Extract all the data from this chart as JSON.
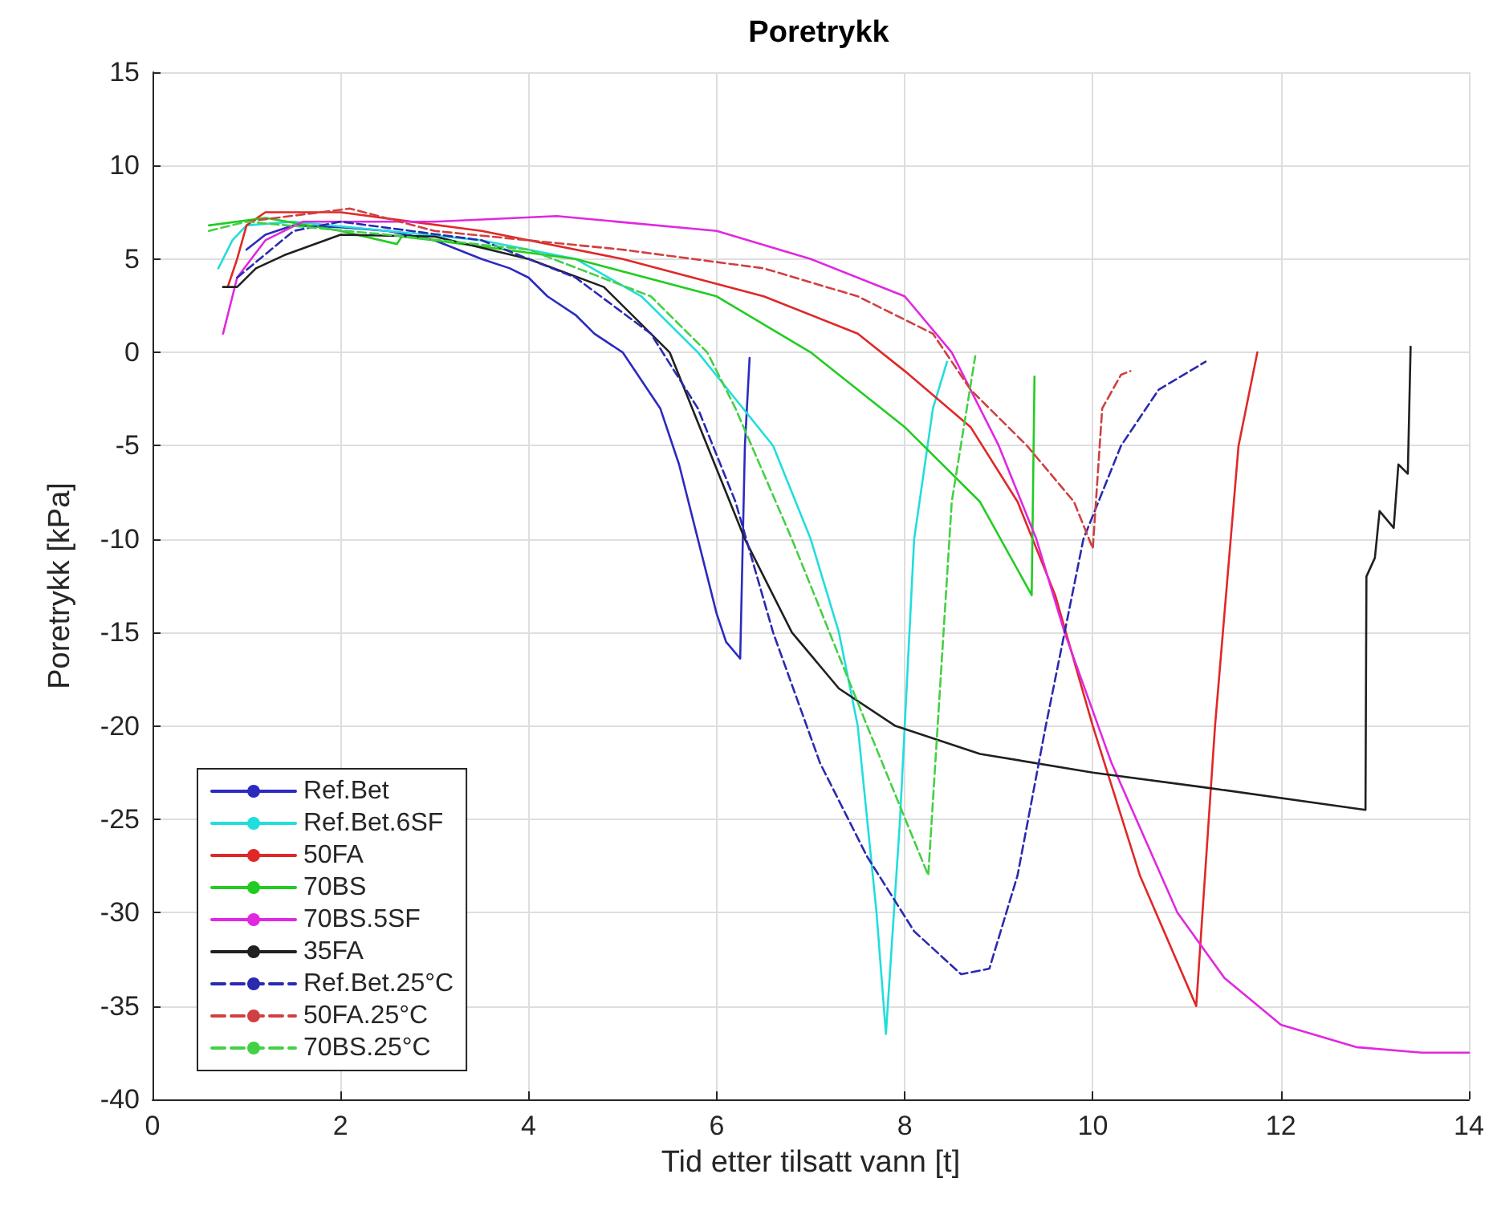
{
  "chart_data": {
    "type": "line",
    "title": "Poretrykk",
    "xlabel": "Tid etter tilsatt vann [t]",
    "ylabel": "Poretrykk [kPa]",
    "xlim": [
      0,
      14
    ],
    "xticks": [
      0,
      2,
      4,
      6,
      8,
      10,
      12,
      14
    ],
    "ylim": [
      -40,
      15
    ],
    "yticks": [
      -40,
      -35,
      -30,
      -25,
      -20,
      -15,
      -10,
      -5,
      0,
      5,
      10,
      15
    ],
    "grid": true,
    "legend": "bottom left",
    "marker": "none",
    "series": [
      {
        "name": "Ref.Bet",
        "color": "#2b2bc0",
        "line_style": "solid",
        "x": [
          1.0,
          1.2,
          1.5,
          2.0,
          2.5,
          3.0,
          3.5,
          3.8,
          4.0,
          4.2,
          4.5,
          4.7,
          5.0,
          5.2,
          5.4,
          5.6,
          5.8,
          6.0,
          6.1,
          6.25,
          6.3,
          6.35
        ],
        "values": [
          5.5,
          6.3,
          6.8,
          6.7,
          6.5,
          6.0,
          5.0,
          4.5,
          4.0,
          3.0,
          2.0,
          1.0,
          0.0,
          -1.5,
          -3.0,
          -6.0,
          -10.0,
          -14.0,
          -15.5,
          -16.4,
          -5.0,
          -0.3
        ]
      },
      {
        "name": "Ref.Bet.6SF",
        "color": "#22dddd",
        "line_style": "solid",
        "x": [
          0.7,
          0.85,
          1.0,
          1.5,
          2.5,
          3.5,
          4.5,
          5.2,
          5.8,
          6.2,
          6.6,
          7.0,
          7.3,
          7.5,
          7.7,
          7.8,
          7.95,
          8.1,
          8.3,
          8.45
        ],
        "values": [
          4.5,
          6.0,
          6.8,
          7.0,
          6.5,
          6.0,
          5.0,
          3.0,
          0.0,
          -2.5,
          -5.0,
          -10.0,
          -15.0,
          -20.0,
          -30.0,
          -36.5,
          -25.0,
          -10.0,
          -3.0,
          -0.5
        ]
      },
      {
        "name": "50FA",
        "color": "#e02828",
        "line_style": "solid",
        "x": [
          0.8,
          0.9,
          1.0,
          1.2,
          2.0,
          3.5,
          5.0,
          6.5,
          7.5,
          8.0,
          8.7,
          9.2,
          9.6,
          10.0,
          10.5,
          11.1,
          11.3,
          11.55,
          11.75
        ],
        "values": [
          3.5,
          5.0,
          6.8,
          7.5,
          7.5,
          6.5,
          5.0,
          3.0,
          1.0,
          -1.0,
          -4.0,
          -8.0,
          -13.0,
          -20.0,
          -28.0,
          -35.0,
          -20.0,
          -5.0,
          0.0
        ]
      },
      {
        "name": "70BS",
        "color": "#22cc22",
        "line_style": "solid",
        "x": [
          0.6,
          1.2,
          2.0,
          2.6,
          2.65,
          3.0,
          4.5,
          6.0,
          7.0,
          8.0,
          8.8,
          9.35,
          9.38
        ],
        "values": [
          6.8,
          7.2,
          6.5,
          5.8,
          6.2,
          6.0,
          5.0,
          3.0,
          0.0,
          -4.0,
          -8.0,
          -13.0,
          -1.3
        ]
      },
      {
        "name": "70BS.5SF",
        "color": "#e028e0",
        "line_style": "solid",
        "x": [
          0.75,
          0.9,
          1.2,
          1.6,
          3.0,
          4.3,
          6.0,
          7.0,
          8.0,
          8.5,
          9.0,
          9.4,
          9.7,
          10.2,
          10.9,
          11.4,
          12.0,
          12.8,
          13.5,
          14.0
        ],
        "values": [
          1.0,
          4.0,
          6.0,
          7.0,
          7.0,
          7.3,
          6.5,
          5.0,
          3.0,
          0.0,
          -5.0,
          -10.0,
          -15.0,
          -22.0,
          -30.0,
          -33.5,
          -36.0,
          -37.2,
          -37.5,
          -37.5
        ]
      },
      {
        "name": "35FA",
        "color": "#202020",
        "line_style": "solid",
        "x": [
          0.75,
          0.9,
          1.1,
          1.4,
          2.0,
          3.0,
          4.0,
          4.8,
          5.5,
          5.9,
          6.3,
          6.8,
          7.3,
          7.9,
          8.8,
          10.0,
          11.2,
          12.9,
          12.91,
          13.0,
          13.05,
          13.2,
          13.25,
          13.35,
          13.38
        ],
        "values": [
          3.5,
          3.5,
          4.5,
          5.2,
          6.3,
          6.2,
          5.0,
          3.5,
          0.0,
          -5.0,
          -10.0,
          -15.0,
          -18.0,
          -20.0,
          -21.5,
          -22.5,
          -23.3,
          -24.5,
          -12.0,
          -11.0,
          -8.5,
          -9.4,
          -6.0,
          -6.5,
          0.3
        ]
      },
      {
        "name": "Ref.Bet.25°C",
        "color": "#2a2ab0",
        "line_style": "dashed",
        "x": [
          0.9,
          1.5,
          2.0,
          3.5,
          4.5,
          5.3,
          5.8,
          6.2,
          6.6,
          7.1,
          7.6,
          8.1,
          8.6,
          8.9,
          9.2,
          9.5,
          9.9,
          10.3,
          10.7,
          11.2
        ],
        "values": [
          4.0,
          6.5,
          7.0,
          6.0,
          4.0,
          1.0,
          -3.0,
          -8.0,
          -15.0,
          -22.0,
          -27.0,
          -31.0,
          -33.3,
          -33.0,
          -28.0,
          -20.0,
          -10.0,
          -5.0,
          -2.0,
          -0.5
        ]
      },
      {
        "name": "50FA.25°C",
        "color": "#d04040",
        "line_style": "dashed",
        "x": [
          1.0,
          2.1,
          3.0,
          5.0,
          6.5,
          7.5,
          8.3,
          8.7,
          9.3,
          9.8,
          10.0,
          10.1,
          10.3,
          10.4
        ],
        "values": [
          7.0,
          7.7,
          6.5,
          5.5,
          4.5,
          3.0,
          1.0,
          -2.0,
          -5.0,
          -8.0,
          -10.5,
          -3.0,
          -1.2,
          -1.0
        ]
      },
      {
        "name": "70BS.25°C",
        "color": "#44d044",
        "line_style": "dashed",
        "x": [
          0.6,
          1.0,
          2.5,
          4.0,
          5.3,
          5.9,
          6.2,
          6.8,
          7.6,
          8.25,
          8.35,
          8.5,
          8.75
        ],
        "values": [
          6.5,
          7.0,
          6.3,
          5.5,
          3.0,
          0.0,
          -3.0,
          -10.0,
          -20.0,
          -28.0,
          -20.0,
          -8.0,
          -0.2
        ]
      }
    ]
  }
}
